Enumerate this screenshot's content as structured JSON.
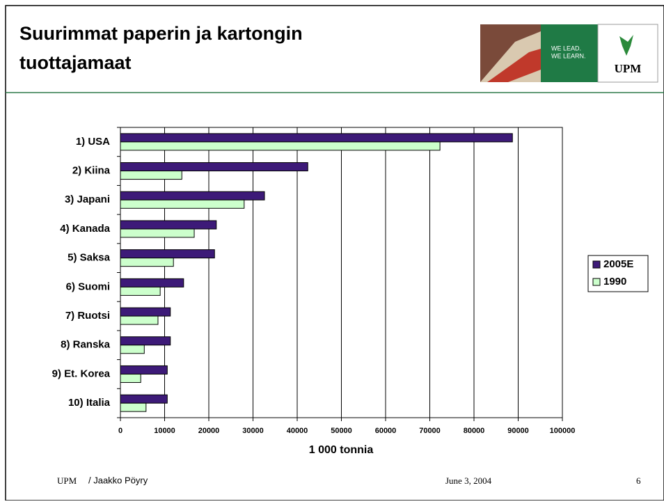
{
  "slide": {
    "title_lines": [
      "Suurimmat paperin ja kartongin",
      "tuottajamaat"
    ],
    "logo": {
      "slogan_lines": [
        "WE LEAD.",
        "WE LEARN."
      ],
      "brand": "UPM"
    },
    "footer": {
      "company": "UPM",
      "author": "/ Jaakko Pöyry",
      "date": "June 3, 2004",
      "page": "6"
    }
  },
  "chart_data": {
    "type": "hbar",
    "x_label": "1 000 tonnia",
    "categories": [
      "1) USA",
      "2) Kiina",
      "3) Japani",
      "4) Kanada",
      "5) Saksa",
      "6) Suomi",
      "7) Ruotsi",
      "8) Ranska",
      "9) Et. Korea",
      "10) Italia"
    ],
    "series": [
      {
        "name": "2005E",
        "color": "#3d1a78",
        "values": [
          88700,
          42400,
          32600,
          21700,
          21300,
          14300,
          11300,
          11300,
          10600,
          10600
        ]
      },
      {
        "name": "1990",
        "color": "#ccffcc",
        "values": [
          72300,
          13900,
          28000,
          16700,
          12000,
          9000,
          8500,
          5400,
          4600,
          5800
        ]
      }
    ],
    "xlim": [
      0,
      100000
    ],
    "xticks": [
      0,
      10000,
      20000,
      30000,
      40000,
      50000,
      60000,
      70000,
      80000,
      90000,
      100000
    ],
    "grid": true,
    "legend": "right"
  }
}
